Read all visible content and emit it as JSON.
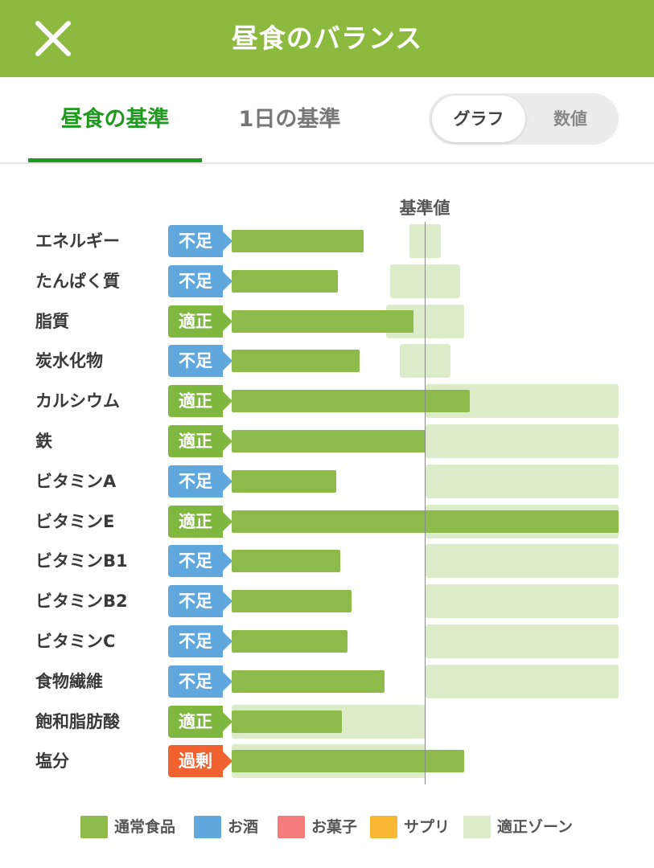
{
  "header": {
    "title": "昼食のバランス",
    "close_icon": "close-icon"
  },
  "tabs": [
    {
      "label": "昼食の基準",
      "active": true
    },
    {
      "label": "1日の基準",
      "active": false
    }
  ],
  "view_toggle": {
    "options": [
      "グラフ",
      "数値"
    ],
    "selected": "グラフ"
  },
  "colors": {
    "header": "#8cba3f",
    "active_tab": "#1f9a1f",
    "lack": "#5fa7dd",
    "ok": "#7fb741",
    "over": "#f0622f",
    "bar": "#8cbb4b",
    "zone": "#dcebc8"
  },
  "chart_data": {
    "type": "bar",
    "orientation": "horizontal",
    "reference_label": "基準値",
    "reference_value": 100,
    "x_range": [
      0,
      200
    ],
    "categories": [
      "エネルギー",
      "たんぱく質",
      "脂質",
      "炭水化物",
      "カルシウム",
      "鉄",
      "ビタミンA",
      "ビタミンE",
      "ビタミンB1",
      "ビタミンB2",
      "ビタミンC",
      "食物繊維",
      "飽和脂肪酸",
      "塩分"
    ],
    "rows": [
      {
        "name": "エネルギー",
        "status": "不足",
        "status_type": "lack",
        "value": 68,
        "zone": [
          92,
          108
        ]
      },
      {
        "name": "たんぱく質",
        "status": "不足",
        "status_type": "lack",
        "value": 55,
        "zone": [
          82,
          118
        ]
      },
      {
        "name": "脂質",
        "status": "適正",
        "status_type": "ok",
        "value": 94,
        "zone": [
          80,
          120
        ]
      },
      {
        "name": "炭水化物",
        "status": "不足",
        "status_type": "lack",
        "value": 66,
        "zone": [
          87,
          113
        ]
      },
      {
        "name": "カルシウム",
        "status": "適正",
        "status_type": "ok",
        "value": 123,
        "zone": [
          100,
          200
        ]
      },
      {
        "name": "鉄",
        "status": "適正",
        "status_type": "ok",
        "value": 100,
        "zone": [
          100,
          200
        ]
      },
      {
        "name": "ビタミンA",
        "status": "不足",
        "status_type": "lack",
        "value": 54,
        "zone": [
          100,
          200
        ]
      },
      {
        "name": "ビタミンE",
        "status": "適正",
        "status_type": "ok",
        "value": 200,
        "zone": [
          100,
          200
        ]
      },
      {
        "name": "ビタミンB1",
        "status": "不足",
        "status_type": "lack",
        "value": 56,
        "zone": [
          100,
          200
        ]
      },
      {
        "name": "ビタミンB2",
        "status": "不足",
        "status_type": "lack",
        "value": 62,
        "zone": [
          100,
          200
        ]
      },
      {
        "name": "ビタミンC",
        "status": "不足",
        "status_type": "lack",
        "value": 60,
        "zone": [
          100,
          200
        ]
      },
      {
        "name": "食物繊維",
        "status": "不足",
        "status_type": "lack",
        "value": 79,
        "zone": [
          100,
          200
        ]
      },
      {
        "name": "飽和脂肪酸",
        "status": "適正",
        "status_type": "ok",
        "value": 57,
        "zone": [
          0,
          100
        ]
      },
      {
        "name": "塩分",
        "status": "過剰",
        "status_type": "over",
        "value": 120,
        "zone": [
          0,
          100
        ]
      }
    ]
  },
  "legend": [
    {
      "label": "通常食品",
      "color": "#8cbb4b"
    },
    {
      "label": "お酒",
      "color": "#5fa7dd"
    },
    {
      "label": "お菓子",
      "color": "#f57b7b"
    },
    {
      "label": "サプリ",
      "color": "#f7b733"
    },
    {
      "label": "適正ゾーン",
      "color": "#dcebc8"
    }
  ]
}
